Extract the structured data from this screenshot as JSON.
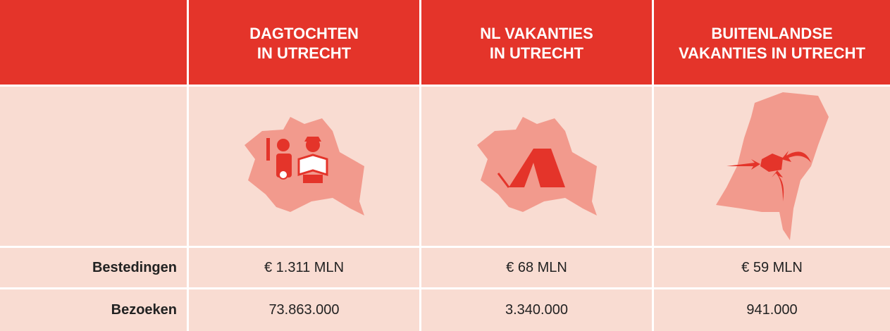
{
  "table": {
    "headers": [
      [
        "DAGTOCHTEN",
        "IN UTRECHT"
      ],
      [
        "NL VAKANTIES",
        "IN UTRECHT"
      ],
      [
        "BUITENLANDSE",
        "VAKANTIES IN UTRECHT"
      ]
    ],
    "rows": [
      {
        "label": "Bestedingen",
        "cells": [
          "€ 1.311 MLN",
          "€ 68 MLN",
          "€ 59 MLN"
        ]
      },
      {
        "label": "Bezoeken",
        "cells": [
          "73.863.000",
          "3.340.000",
          "941.000"
        ]
      }
    ]
  }
}
